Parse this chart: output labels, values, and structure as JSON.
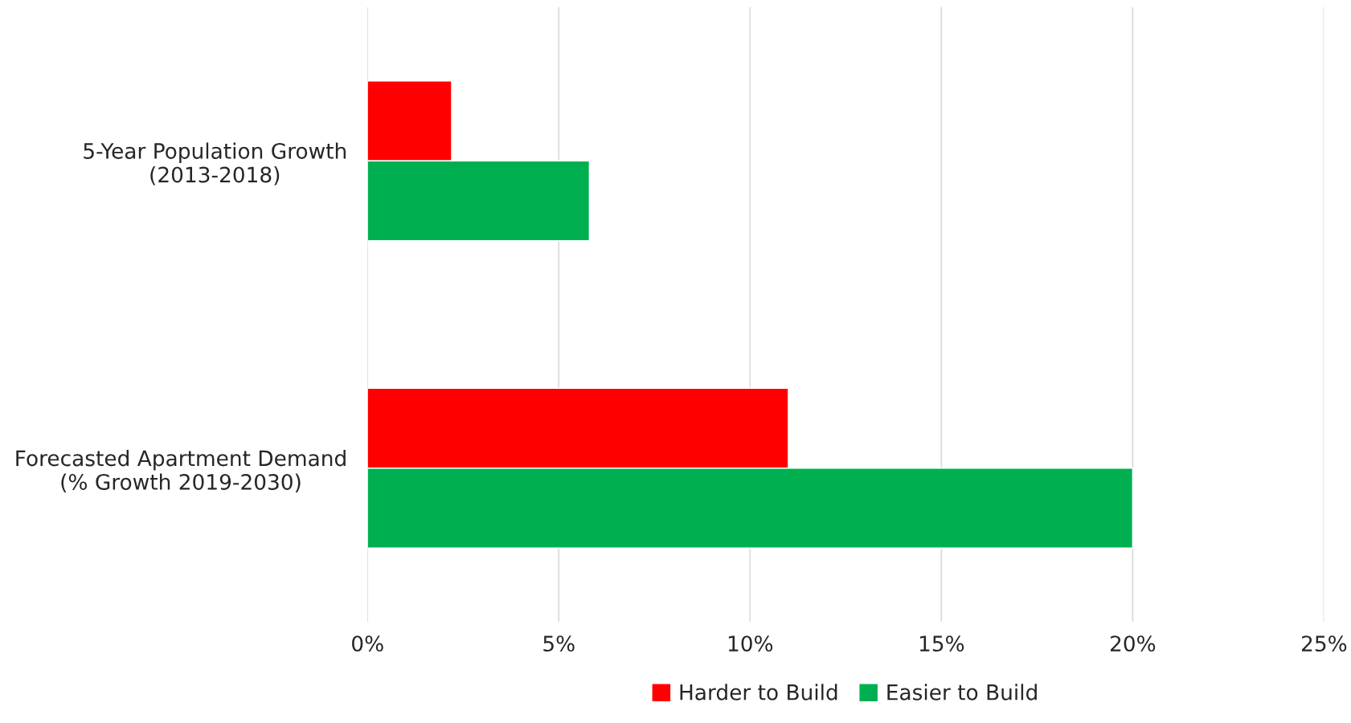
{
  "chart_data": {
    "type": "bar",
    "orientation": "horizontal",
    "categories": [
      "5-Year Population Growth\n(2013-2018)",
      "Forecasted Apartment Demand\n(% Growth 2019-2030)"
    ],
    "series": [
      {
        "name": "Harder to Build",
        "color": "#ff0000",
        "values": [
          2.2,
          11.0
        ]
      },
      {
        "name": "Easier to Build",
        "color": "#00b050",
        "values": [
          5.8,
          20.0
        ]
      }
    ],
    "xlim": [
      0,
      25
    ],
    "xticks": [
      {
        "value": 0,
        "label": "0%"
      },
      {
        "value": 5,
        "label": "5%"
      },
      {
        "value": 10,
        "label": "10%"
      },
      {
        "value": 15,
        "label": "15%"
      },
      {
        "value": 20,
        "label": "20%"
      },
      {
        "value": 25,
        "label": "25%"
      }
    ],
    "grid": "x",
    "legend": "bottom"
  }
}
